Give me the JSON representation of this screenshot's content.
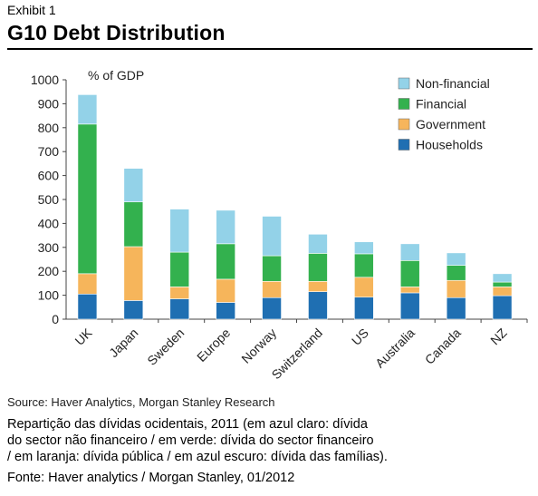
{
  "header": {
    "exhibit": "Exhibit 1",
    "title": "G10 Debt Distribution"
  },
  "source": "Source: Haver Analytics, Morgan Stanley Research",
  "caption": "Repartição das dívidas ocidentais, 2011 (em azul claro: dívida\ndo sector não financeiro / em verde: dívida do sector financeiro\n/ em laranja: dívida pública / em azul escuro: dívida das famílias).",
  "fonte": "Fonte: Haver analytics / Morgan Stanley, 01/2012",
  "chart_data": {
    "type": "bar",
    "stacked": true,
    "title": "",
    "ylabel": "% of GDP",
    "xlabel": "",
    "ylim": [
      0,
      1000
    ],
    "yticks": [
      0,
      100,
      200,
      300,
      400,
      500,
      600,
      700,
      800,
      900,
      1000
    ],
    "categories": [
      "UK",
      "Japan",
      "Sweden",
      "Europe",
      "Norway",
      "Switzerland",
      "US",
      "Australia",
      "Canada",
      "NZ"
    ],
    "legend_position": "top-right",
    "series": [
      {
        "name": "Households",
        "color": "#1f6fb2",
        "values": [
          105,
          78,
          85,
          70,
          90,
          115,
          92,
          110,
          90,
          98
        ]
      },
      {
        "name": "Government",
        "color": "#f6b55b",
        "values": [
          85,
          225,
          50,
          97,
          68,
          43,
          83,
          25,
          72,
          37
        ]
      },
      {
        "name": "Financial",
        "color": "#33b14e",
        "values": [
          625,
          187,
          145,
          148,
          107,
          117,
          98,
          110,
          63,
          20
        ]
      },
      {
        "name": "Non-financial",
        "color": "#93d2e8",
        "values": [
          123,
          140,
          180,
          140,
          165,
          80,
          50,
          70,
          52,
          35
        ]
      }
    ],
    "legend_order": [
      "Non-financial",
      "Financial",
      "Government",
      "Households"
    ],
    "grid": false
  }
}
